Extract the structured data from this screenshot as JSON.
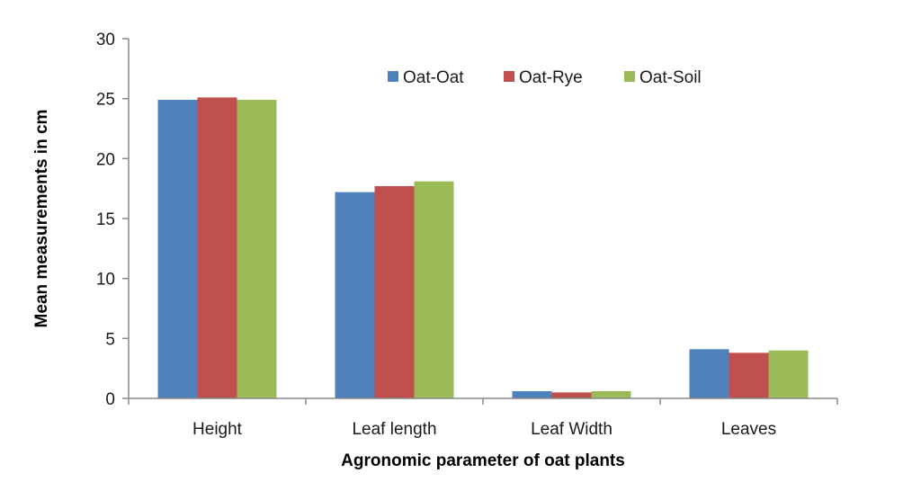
{
  "chart_data": {
    "type": "bar",
    "title": "",
    "xlabel": "Agronomic parameter of oat plants",
    "ylabel": "Mean measurements in cm",
    "categories": [
      "Height",
      "Leaf length",
      "Leaf Width",
      "Leaves"
    ],
    "series": [
      {
        "name": "Oat-Oat",
        "color": "#4f81bd",
        "values": [
          24.9,
          17.2,
          0.6,
          4.1
        ]
      },
      {
        "name": "Oat-Rye",
        "color": "#c0504d",
        "values": [
          25.1,
          17.7,
          0.5,
          3.8
        ]
      },
      {
        "name": "Oat-Soil",
        "color": "#9bbb59",
        "values": [
          24.9,
          18.1,
          0.6,
          4.0
        ]
      }
    ],
    "ylim": [
      0,
      30
    ],
    "yticks": [
      0,
      5,
      10,
      15,
      20,
      25,
      30
    ],
    "grid": false,
    "legend": "top-center"
  }
}
